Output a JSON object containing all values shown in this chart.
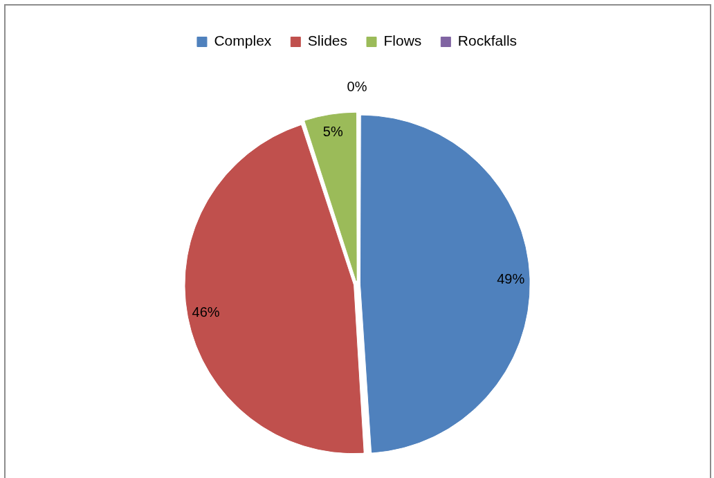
{
  "chart_data": {
    "type": "pie",
    "categories": [
      "Complex",
      "Slides",
      "Flows",
      "Rockfalls"
    ],
    "values": [
      49,
      46,
      5,
      0
    ],
    "value_labels": [
      "49%",
      "46%",
      "5%",
      "0%"
    ],
    "colors": [
      "#4f81bd",
      "#c0504d",
      "#9bbb59",
      "#8064a2"
    ],
    "legend": "top"
  }
}
